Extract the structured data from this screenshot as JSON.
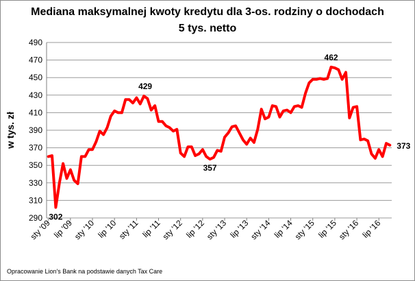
{
  "chart_data": {
    "type": "line",
    "title_line1": "Mediana maksymalnej kwoty kredytu dla 3-os. rodziny o dochodach",
    "title_line2": "5 tys. netto",
    "ylabel": "w tys. zł",
    "source": "Opracowanie Lion's Bank na podstawie danych Tax Care",
    "ylim": [
      290,
      490
    ],
    "yticks": [
      290,
      310,
      330,
      350,
      370,
      390,
      410,
      430,
      450,
      470,
      490
    ],
    "grid": true,
    "line_color": "#ff0000",
    "x_start": "2009-01",
    "xtick_labels": [
      "sty '09",
      "lip '09",
      "sty '10",
      "lip '10",
      "sty '11",
      "lip '11",
      "sty '12",
      "lip '12",
      "sty '13",
      "lip '13",
      "sty '14",
      "lip '14",
      "sty '15",
      "lip '15",
      "sty '16",
      "lip '16"
    ],
    "values": [
      360,
      361,
      302,
      330,
      352,
      335,
      345,
      333,
      329,
      360,
      360,
      368,
      368,
      377,
      389,
      385,
      393,
      406,
      412,
      410,
      410,
      425,
      425,
      421,
      427,
      420,
      429,
      426,
      413,
      418,
      400,
      400,
      395,
      393,
      389,
      391,
      364,
      360,
      371,
      371,
      361,
      363,
      368,
      360,
      357,
      359,
      367,
      366,
      382,
      387,
      394,
      395,
      387,
      379,
      374,
      381,
      376,
      391,
      414,
      403,
      405,
      418,
      417,
      405,
      412,
      413,
      410,
      417,
      418,
      416,
      432,
      444,
      448,
      448,
      449,
      448,
      449,
      462,
      461,
      459,
      448,
      456,
      404,
      416,
      417,
      379,
      380,
      378,
      363,
      358,
      368,
      360,
      375,
      373
    ],
    "annotations": [
      {
        "label": "302",
        "x": "2009-03",
        "value": 302
      },
      {
        "label": "429",
        "x": "2011-03",
        "value": 429
      },
      {
        "label": "357",
        "x": "2012-09",
        "value": 357
      },
      {
        "label": "462",
        "x": "2015-06",
        "value": 462
      },
      {
        "label": "373",
        "x": "2016-10",
        "value": 373
      }
    ]
  }
}
